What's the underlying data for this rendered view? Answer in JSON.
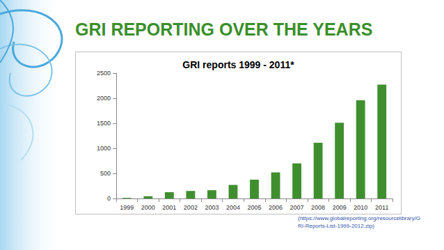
{
  "header": {
    "title": "GRI REPORTING OVER THE YEARS"
  },
  "chart_data": {
    "type": "bar",
    "title": "GRI reports 1999 - 2011*",
    "categories": [
      "1999",
      "2000",
      "2001",
      "2002",
      "2003",
      "2004",
      "2005",
      "2006",
      "2007",
      "2008",
      "2009",
      "2010",
      "2011"
    ],
    "values": [
      12,
      45,
      125,
      150,
      165,
      270,
      375,
      520,
      700,
      1110,
      1510,
      1960,
      2270
    ],
    "color": "#3f8f2f",
    "ylim": [
      0,
      2500
    ],
    "yticks": [
      0,
      500,
      1000,
      1500,
      2000,
      2500
    ],
    "grid": false
  },
  "footer": {
    "source": [
      "(https://www.globalreporting.org/resourcelibrary/G",
      "RI-Reports-List-1999-2012.zip)"
    ]
  }
}
